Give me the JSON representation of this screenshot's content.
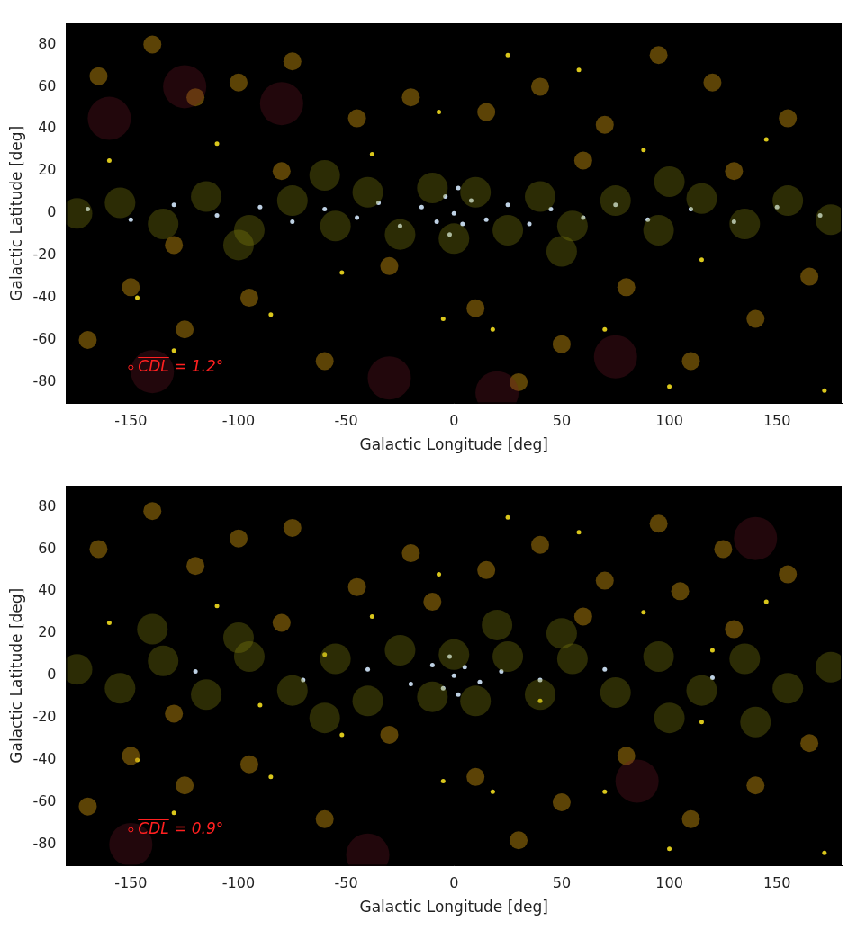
{
  "chart_data": [
    {
      "type": "scatter",
      "xlabel": "Galactic Longitude [deg]",
      "ylabel": "Galactic Latitude [deg]",
      "xlim": [
        -180,
        180
      ],
      "ylim": [
        -90,
        90
      ],
      "xticks": [
        -150,
        -100,
        -50,
        0,
        50,
        100,
        150
      ],
      "yticks": [
        -80,
        -60,
        -40,
        -20,
        0,
        20,
        40,
        60,
        80
      ],
      "grid": false,
      "annotation": {
        "text": "CDL = 1.2°",
        "x": -150,
        "y": -73,
        "color": "#ff2020"
      },
      "series": [
        {
          "color": "#7a1a2a",
          "marker": "haze",
          "x": [
            -125,
            -140,
            -30,
            75,
            -80,
            20,
            -160
          ],
          "y": [
            60,
            -75,
            -78,
            -68,
            52,
            -85,
            45
          ]
        },
        {
          "color": "#8a8a10",
          "marker": "glow",
          "x": [
            -175,
            -155,
            -135,
            -115,
            -95,
            -75,
            -55,
            -40,
            -25,
            -10,
            0,
            10,
            25,
            40,
            55,
            75,
            95,
            115,
            135,
            155,
            175,
            -60,
            50,
            -100,
            100
          ],
          "y": [
            0,
            5,
            -5,
            8,
            -8,
            6,
            -6,
            10,
            -10,
            12,
            -12,
            10,
            -8,
            8,
            -6,
            6,
            -8,
            7,
            -5,
            6,
            -3,
            18,
            -18,
            -15,
            15
          ]
        },
        {
          "color": "#b8860b",
          "marker": "blob",
          "x": [
            -165,
            -140,
            -120,
            -100,
            -75,
            -45,
            -20,
            15,
            40,
            70,
            95,
            120,
            155,
            -150,
            -125,
            -95,
            -60,
            -30,
            10,
            50,
            80,
            110,
            140,
            165,
            -170,
            30,
            -80,
            60,
            130,
            -130
          ],
          "y": [
            65,
            80,
            55,
            62,
            72,
            45,
            55,
            48,
            60,
            42,
            75,
            62,
            45,
            -35,
            -55,
            -40,
            -70,
            -25,
            -45,
            -62,
            -35,
            -70,
            -50,
            -30,
            -60,
            -80,
            20,
            25,
            20,
            -15
          ]
        },
        {
          "color": "#e6d21e",
          "marker": "dot",
          "x": [
            -147,
            -130,
            -85,
            -5,
            18,
            25,
            58,
            -52,
            100,
            172,
            -7,
            88,
            -110,
            145,
            -160,
            70,
            115,
            -38
          ],
          "y": [
            -40,
            -65,
            -48,
            -50,
            -55,
            75,
            68,
            -28,
            -82,
            -84,
            48,
            30,
            33,
            35,
            25,
            -55,
            -22,
            28
          ]
        },
        {
          "color": "#c8dcf0",
          "marker": "dot",
          "x": [
            -170,
            -150,
            -130,
            -110,
            -90,
            -75,
            -60,
            -45,
            -35,
            -25,
            -15,
            -8,
            -4,
            -2,
            0,
            2,
            4,
            8,
            15,
            25,
            35,
            45,
            60,
            75,
            90,
            110,
            130,
            150,
            170
          ],
          "y": [
            2,
            -3,
            4,
            -1,
            3,
            -4,
            2,
            -2,
            5,
            -6,
            3,
            -4,
            8,
            -10,
            0,
            12,
            -5,
            6,
            -3,
            4,
            -5,
            2,
            -2,
            4,
            -3,
            2,
            -4,
            3,
            -1
          ]
        }
      ]
    },
    {
      "type": "scatter",
      "xlabel": "Galactic Longitude [deg]",
      "ylabel": "Galactic Latitude [deg]",
      "xlim": [
        -180,
        180
      ],
      "ylim": [
        -90,
        90
      ],
      "xticks": [
        -150,
        -100,
        -50,
        0,
        50,
        100,
        150
      ],
      "yticks": [
        -80,
        -60,
        -40,
        -20,
        0,
        20,
        40,
        60,
        80
      ],
      "grid": false,
      "annotation": {
        "text": "CDL = 0.9°",
        "x": -150,
        "y": -73,
        "color": "#ff2020"
      },
      "series": [
        {
          "color": "#7a1a2a",
          "marker": "haze",
          "x": [
            -150,
            85,
            -40,
            140
          ],
          "y": [
            -80,
            -50,
            -85,
            65
          ]
        },
        {
          "color": "#8a8a10",
          "marker": "glow",
          "x": [
            -175,
            -155,
            -135,
            -115,
            -95,
            -75,
            -55,
            -40,
            -25,
            -10,
            0,
            10,
            25,
            40,
            55,
            75,
            95,
            115,
            135,
            155,
            175,
            -60,
            50,
            -100,
            100,
            -140,
            140,
            20
          ],
          "y": [
            3,
            -6,
            7,
            -9,
            9,
            -7,
            8,
            -12,
            12,
            -10,
            10,
            -12,
            9,
            -9,
            8,
            -8,
            9,
            -7,
            8,
            -6,
            4,
            -20,
            20,
            18,
            -20,
            22,
            -22,
            24
          ]
        },
        {
          "color": "#b8860b",
          "marker": "blob",
          "x": [
            -165,
            -140,
            -120,
            -100,
            -75,
            -45,
            -20,
            15,
            40,
            70,
            95,
            125,
            155,
            -150,
            -125,
            -95,
            -60,
            -30,
            10,
            50,
            80,
            110,
            140,
            165,
            -170,
            30,
            -80,
            60,
            130,
            -130,
            -10,
            105
          ],
          "y": [
            60,
            78,
            52,
            65,
            70,
            42,
            58,
            50,
            62,
            45,
            72,
            60,
            48,
            -38,
            -52,
            -42,
            -68,
            -28,
            -48,
            -60,
            -38,
            -68,
            -52,
            -32,
            -62,
            -78,
            25,
            28,
            22,
            -18,
            35,
            40
          ]
        },
        {
          "color": "#e6d21e",
          "marker": "dot",
          "x": [
            -147,
            -130,
            -85,
            -5,
            18,
            25,
            58,
            -52,
            100,
            172,
            -7,
            88,
            -110,
            145,
            -160,
            70,
            115,
            -38,
            -60,
            40,
            120,
            -90
          ],
          "y": [
            -40,
            -65,
            -48,
            -50,
            -55,
            75,
            68,
            -28,
            -82,
            -84,
            48,
            30,
            33,
            35,
            25,
            -55,
            -22,
            28,
            10,
            -12,
            12,
            -14
          ]
        },
        {
          "color": "#c8dcf0",
          "marker": "dot",
          "x": [
            -120,
            -70,
            -40,
            -20,
            -10,
            -5,
            -2,
            0,
            2,
            5,
            12,
            22,
            40,
            70,
            120
          ],
          "y": [
            2,
            -2,
            3,
            -4,
            5,
            -6,
            9,
            0,
            -9,
            4,
            -3,
            2,
            -2,
            3,
            -1
          ]
        }
      ]
    }
  ]
}
